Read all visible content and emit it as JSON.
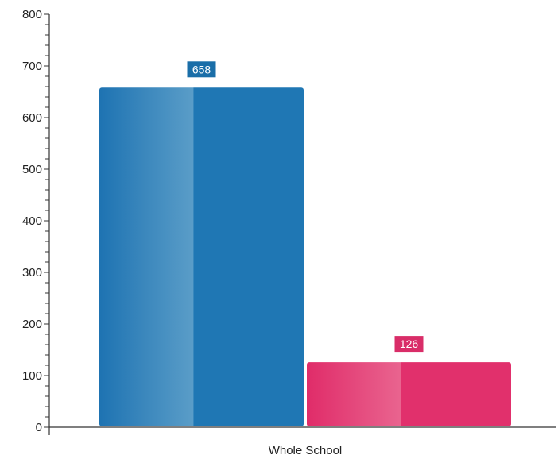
{
  "chart_data": {
    "type": "bar",
    "categories": [
      "Whole School"
    ],
    "series": [
      {
        "values": [
          658
        ],
        "color": "#1f77b4",
        "label_color": "#1a6ea8"
      },
      {
        "values": [
          126
        ],
        "color": "#e1306c",
        "label_color": "#d92d68"
      }
    ],
    "y_ticks": [
      "0",
      "100",
      "200",
      "300",
      "400",
      "500",
      "600",
      "700",
      "800"
    ],
    "ylim": [
      0,
      800
    ],
    "grid": false,
    "legend": "none",
    "data_labels": [
      "658",
      "126"
    ]
  }
}
